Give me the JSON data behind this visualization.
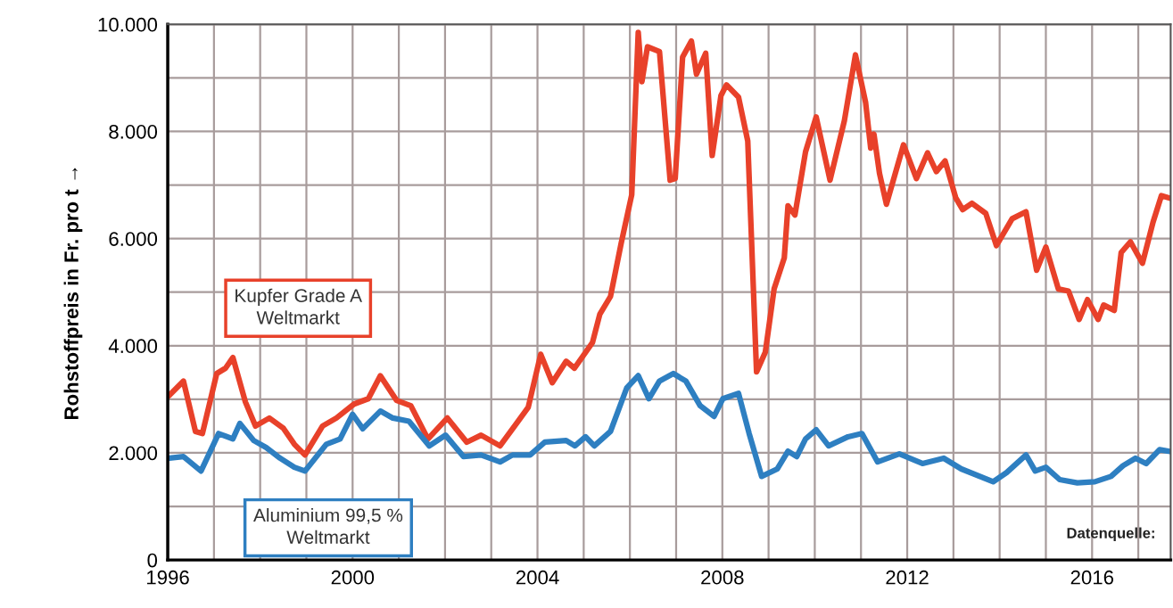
{
  "chart_data": {
    "type": "line",
    "ylabel": "Rohstoffpreis in Fr. pro t →",
    "xlim": [
      1996,
      2017.7
    ],
    "xticks": [
      1996,
      {
        "value": 1997,
        "label": null
      },
      {
        "value": 1998,
        "label": null
      },
      {
        "value": 1999,
        "label": null
      },
      2000,
      {
        "value": 2001,
        "label": null
      },
      {
        "value": 2002,
        "label": null
      },
      {
        "value": 2003,
        "label": null
      },
      2004,
      {
        "value": 2005,
        "label": null
      },
      {
        "value": 2006,
        "label": null
      },
      {
        "value": 2007,
        "label": null
      },
      2008,
      {
        "value": 2009,
        "label": null
      },
      {
        "value": 2010,
        "label": null
      },
      {
        "value": 2011,
        "label": null
      },
      2012,
      {
        "value": 2013,
        "label": null
      },
      {
        "value": 2014,
        "label": null
      },
      {
        "value": 2015,
        "label": null
      },
      2016,
      {
        "value": 2017,
        "label": null
      }
    ],
    "ylim": [
      0,
      10000
    ],
    "yticks": [
      0,
      {
        "value": 1000,
        "label": null
      },
      {
        "value": 2000,
        "label": "2.000"
      },
      {
        "value": 3000,
        "label": null
      },
      {
        "value": 4000,
        "label": "4.000"
      },
      {
        "value": 5000,
        "label": null
      },
      {
        "value": 6000,
        "label": "6.000"
      },
      {
        "value": 7000,
        "label": null
      },
      {
        "value": 8000,
        "label": "8.000"
      },
      {
        "value": 9000,
        "label": null
      },
      {
        "value": 10000,
        "label": "10.000"
      }
    ],
    "grid": true,
    "legend": false,
    "marker": "none",
    "line_style": "solid",
    "annotations": [
      "Datenquelle:"
    ],
    "series": [
      {
        "name": "Kupfer Grade A\nWeltmarkt",
        "color": "#e8412a",
        "x": [
          1996.04,
          1996.34,
          1996.6,
          1996.75,
          1997.06,
          1997.25,
          1997.41,
          1997.68,
          1997.9,
          1998.2,
          1998.5,
          1998.74,
          1998.97,
          1999.35,
          1999.65,
          2000.03,
          2000.34,
          2000.6,
          2000.95,
          2001.26,
          2001.63,
          2002.05,
          2002.47,
          2002.78,
          2003.19,
          2003.53,
          2003.8,
          2004.07,
          2004.32,
          2004.62,
          2004.8,
          2005.19,
          2005.35,
          2005.58,
          2005.81,
          2006.04,
          2006.18,
          2006.26,
          2006.38,
          2006.64,
          2006.87,
          2006.98,
          2007.14,
          2007.33,
          2007.44,
          2007.64,
          2007.78,
          2007.97,
          2008.09,
          2008.35,
          2008.55,
          2008.74,
          2008.93,
          2009.12,
          2009.34,
          2009.42,
          2009.57,
          2009.8,
          2010.03,
          2010.33,
          2010.64,
          2010.88,
          2011.1,
          2011.21,
          2011.28,
          2011.4,
          2011.55,
          2011.92,
          2012.2,
          2012.44,
          2012.63,
          2012.82,
          2013.05,
          2013.2,
          2013.4,
          2013.7,
          2013.93,
          2014.27,
          2014.57,
          2014.8,
          2015.0,
          2015.27,
          2015.49,
          2015.72,
          2015.9,
          2016.13,
          2016.25,
          2016.48,
          2016.63,
          2016.83,
          2017.09,
          2017.32,
          2017.5,
          2017.66
        ],
        "values": [
          3080,
          3340,
          2400,
          2360,
          3480,
          3580,
          3780,
          2950,
          2500,
          2650,
          2460,
          2160,
          1960,
          2500,
          2650,
          2910,
          3010,
          3440,
          2980,
          2880,
          2260,
          2650,
          2200,
          2330,
          2130,
          2530,
          2850,
          3840,
          3310,
          3710,
          3580,
          4060,
          4590,
          4920,
          5910,
          6820,
          9850,
          8930,
          9580,
          9490,
          7090,
          7120,
          9390,
          9690,
          9070,
          9460,
          7550,
          8670,
          8870,
          8640,
          7820,
          3510,
          3880,
          5060,
          5640,
          6610,
          6440,
          7620,
          8270,
          7090,
          8200,
          9430,
          8540,
          7690,
          7950,
          7220,
          6640,
          7750,
          7120,
          7600,
          7250,
          7450,
          6760,
          6540,
          6660,
          6470,
          5870,
          6370,
          6500,
          5410,
          5840,
          5060,
          5020,
          4490,
          4860,
          4490,
          4760,
          4660,
          5740,
          5940,
          5540,
          6310,
          6800,
          6760
        ]
      },
      {
        "name": "Aluminium 99,5 %\nWeltmarkt",
        "color": "#2e7fc1",
        "x": [
          1996.04,
          1996.34,
          1996.72,
          1997.1,
          1997.41,
          1997.56,
          1997.86,
          1998.13,
          1998.43,
          1998.74,
          1998.97,
          1999.43,
          1999.73,
          2000.0,
          2000.22,
          2000.6,
          2000.87,
          2001.22,
          2001.66,
          2002.01,
          2002.4,
          2002.78,
          2003.19,
          2003.46,
          2003.84,
          2004.16,
          2004.62,
          2004.81,
          2005.04,
          2005.23,
          2005.58,
          2005.93,
          2006.18,
          2006.41,
          2006.64,
          2006.94,
          2007.21,
          2007.52,
          2007.82,
          2008.01,
          2008.35,
          2008.58,
          2008.85,
          2009.19,
          2009.42,
          2009.61,
          2009.8,
          2010.03,
          2010.3,
          2010.72,
          2011.02,
          2011.36,
          2011.83,
          2012.33,
          2012.79,
          2013.17,
          2013.86,
          2014.15,
          2014.57,
          2014.77,
          2015.0,
          2015.3,
          2015.68,
          2016.06,
          2016.41,
          2016.67,
          2016.94,
          2017.17,
          2017.46,
          2017.66
        ],
        "values": [
          1900,
          1930,
          1660,
          2360,
          2260,
          2550,
          2230,
          2100,
          1900,
          1730,
          1660,
          2160,
          2260,
          2720,
          2450,
          2780,
          2650,
          2590,
          2130,
          2330,
          1930,
          1960,
          1830,
          1960,
          1960,
          2200,
          2230,
          2130,
          2300,
          2130,
          2400,
          3210,
          3440,
          3010,
          3340,
          3480,
          3340,
          2880,
          2680,
          3010,
          3110,
          2360,
          1560,
          1700,
          2030,
          1930,
          2260,
          2430,
          2130,
          2300,
          2360,
          1830,
          1980,
          1800,
          1900,
          1700,
          1460,
          1630,
          1960,
          1660,
          1730,
          1500,
          1440,
          1460,
          1560,
          1760,
          1900,
          1800,
          2060,
          2030
        ]
      }
    ]
  }
}
